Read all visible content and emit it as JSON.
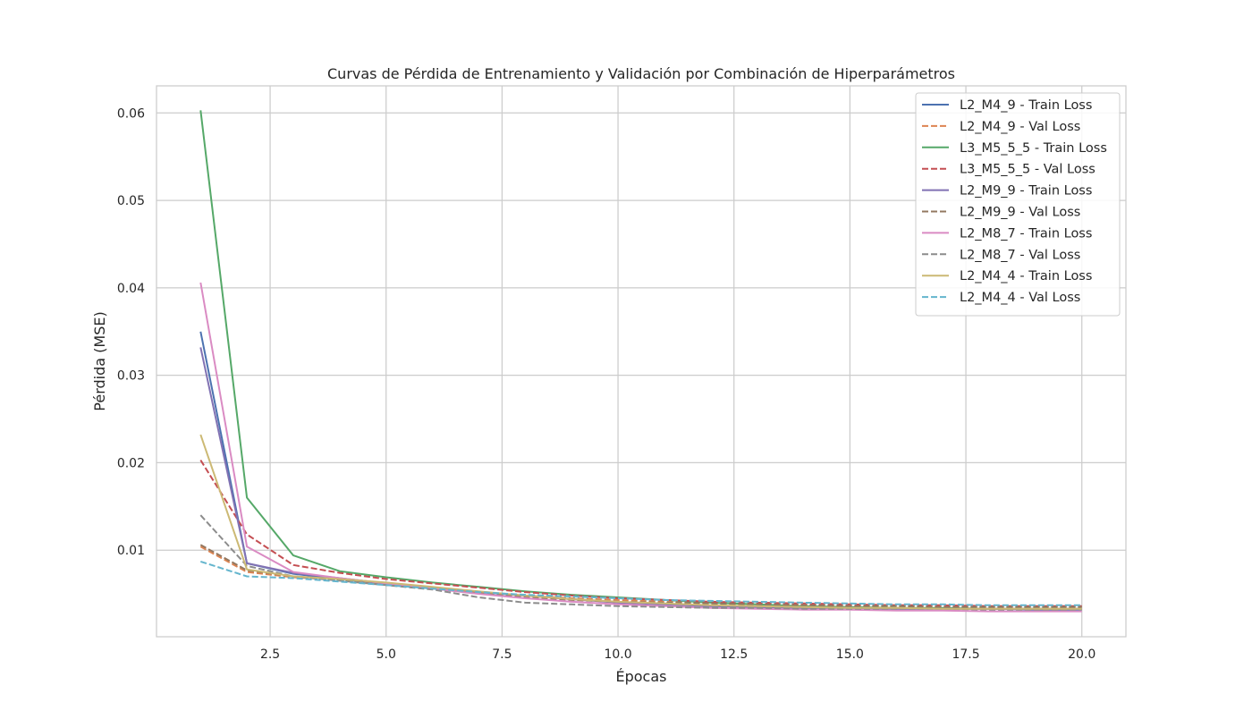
{
  "chart_data": {
    "type": "line",
    "title": "Curvas de Pérdida de Entrenamiento y Validación por Combinación de Hiperparámetros",
    "xlabel": "Épocas",
    "ylabel": "Pérdida (MSE)",
    "xlim": [
      0.05,
      20.95
    ],
    "ylim": [
      0.0001,
      0.0631
    ],
    "xticks": [
      2.5,
      5.0,
      7.5,
      10.0,
      12.5,
      15.0,
      17.5,
      20.0
    ],
    "xtick_labels": [
      "2.5",
      "5.0",
      "7.5",
      "10.0",
      "12.5",
      "15.0",
      "17.5",
      "20.0"
    ],
    "yticks": [
      0.01,
      0.02,
      0.03,
      0.04,
      0.05,
      0.06
    ],
    "ytick_labels": [
      "0.01",
      "0.02",
      "0.03",
      "0.04",
      "0.05",
      "0.06"
    ],
    "grid": true,
    "legend_position": "top-right",
    "x": [
      1,
      2,
      3,
      4,
      5,
      6,
      7,
      8,
      9,
      10,
      11,
      12,
      13,
      14,
      15,
      16,
      17,
      18,
      19,
      20
    ],
    "series": [
      {
        "name": "L2_M4_9 - Train Loss",
        "color": "#4c72b0",
        "dash": "solid",
        "values": [
          0.035,
          0.0085,
          0.0073,
          0.0067,
          0.0061,
          0.0056,
          0.0052,
          0.0048,
          0.0044,
          0.0041,
          0.0038,
          0.0036,
          0.0035,
          0.0034,
          0.0034,
          0.0033,
          0.0033,
          0.0033,
          0.0032,
          0.0032
        ]
      },
      {
        "name": "L2_M4_9 - Val Loss",
        "color": "#dd8452",
        "dash": "dashed",
        "values": [
          0.0104,
          0.0075,
          0.0069,
          0.0066,
          0.0061,
          0.0057,
          0.0052,
          0.0048,
          0.0045,
          0.0043,
          0.0041,
          0.0039,
          0.0038,
          0.0037,
          0.0036,
          0.0036,
          0.0035,
          0.0035,
          0.0035,
          0.0035
        ]
      },
      {
        "name": "L3_M5_5_5 - Train Loss",
        "color": "#55a868",
        "dash": "solid",
        "values": [
          0.0603,
          0.016,
          0.0094,
          0.0076,
          0.0069,
          0.0063,
          0.0058,
          0.0053,
          0.0049,
          0.0046,
          0.0043,
          0.004,
          0.0038,
          0.0036,
          0.0035,
          0.0034,
          0.0034,
          0.0033,
          0.0033,
          0.0033
        ]
      },
      {
        "name": "L3_M5_5_5 - Val Loss",
        "color": "#c44e52",
        "dash": "dashed",
        "values": [
          0.0203,
          0.0118,
          0.0083,
          0.0074,
          0.0067,
          0.0062,
          0.0057,
          0.0052,
          0.0048,
          0.0045,
          0.0043,
          0.0041,
          0.004,
          0.0039,
          0.0038,
          0.0037,
          0.0037,
          0.0036,
          0.0036,
          0.0036
        ]
      },
      {
        "name": "L2_M9_9 - Train Loss",
        "color": "#8172b3",
        "dash": "solid",
        "values": [
          0.0332,
          0.0085,
          0.0074,
          0.0068,
          0.0062,
          0.0057,
          0.0052,
          0.0048,
          0.0044,
          0.004,
          0.0038,
          0.0036,
          0.0035,
          0.0034,
          0.0034,
          0.0033,
          0.0033,
          0.0033,
          0.0033,
          0.0033
        ]
      },
      {
        "name": "L2_M9_9 - Val Loss",
        "color": "#937860",
        "dash": "dashed",
        "values": [
          0.0106,
          0.0077,
          0.007,
          0.0066,
          0.0062,
          0.0057,
          0.0051,
          0.0046,
          0.0043,
          0.0041,
          0.004,
          0.0039,
          0.0038,
          0.0037,
          0.0036,
          0.0036,
          0.0035,
          0.0035,
          0.0035,
          0.0035
        ]
      },
      {
        "name": "L2_M8_7 - Train Loss",
        "color": "#da8bc3",
        "dash": "solid",
        "values": [
          0.0406,
          0.0104,
          0.0075,
          0.0068,
          0.0062,
          0.0056,
          0.005,
          0.0045,
          0.0041,
          0.0038,
          0.0036,
          0.0034,
          0.0033,
          0.0032,
          0.0032,
          0.0031,
          0.0031,
          0.003,
          0.003,
          0.003
        ]
      },
      {
        "name": "L2_M8_7 - Val Loss",
        "color": "#8c8c8c",
        "dash": "dashed",
        "values": [
          0.014,
          0.0082,
          0.007,
          0.0065,
          0.006,
          0.0055,
          0.0046,
          0.004,
          0.0038,
          0.0036,
          0.0035,
          0.0034,
          0.0034,
          0.0033,
          0.0033,
          0.0033,
          0.0033,
          0.0032,
          0.0032,
          0.0032
        ]
      },
      {
        "name": "L2_M4_4 - Train Loss",
        "color": "#ccb974",
        "dash": "solid",
        "values": [
          0.0232,
          0.0078,
          0.007,
          0.0067,
          0.0063,
          0.0058,
          0.0053,
          0.0048,
          0.0044,
          0.0041,
          0.0039,
          0.0037,
          0.0036,
          0.0035,
          0.0034,
          0.0034,
          0.0033,
          0.0033,
          0.0033,
          0.0033
        ]
      },
      {
        "name": "L2_M4_4 - Val Loss",
        "color": "#64b5cd",
        "dash": "dashed",
        "values": [
          0.0087,
          0.007,
          0.0068,
          0.0064,
          0.006,
          0.0056,
          0.0052,
          0.0049,
          0.0047,
          0.0045,
          0.0043,
          0.0042,
          0.0041,
          0.004,
          0.0039,
          0.0038,
          0.0038,
          0.0037,
          0.0037,
          0.0037
        ]
      }
    ]
  }
}
